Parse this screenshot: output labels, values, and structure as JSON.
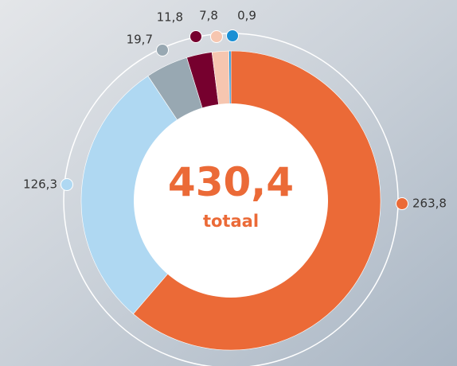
{
  "chart_data": {
    "type": "donut",
    "categories": [
      null,
      null,
      null,
      null,
      null,
      null
    ],
    "values": [
      263.8,
      126.3,
      19.7,
      11.8,
      7.8,
      0.9
    ],
    "value_labels": [
      "263,8",
      "126,3",
      "19,7",
      "11,8",
      "7,8",
      "0,9"
    ],
    "colors": [
      "#eb6a37",
      "#afd8f2",
      "#98a8b2",
      "#76002e",
      "#f6c6b0",
      "#1a8fd4"
    ],
    "total_label": "430,4",
    "total_caption": "totaal"
  }
}
